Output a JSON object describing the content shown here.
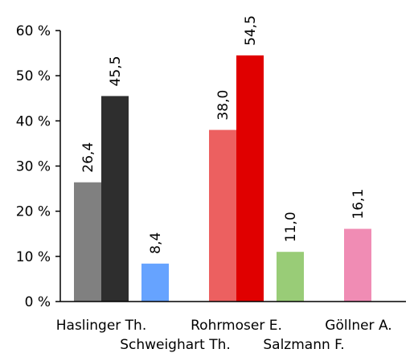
{
  "chart_data": {
    "type": "bar",
    "ylim": [
      0,
      60
    ],
    "y_ticks": [
      {
        "value": 0,
        "label": "0 %"
      },
      {
        "value": 10,
        "label": "10 %"
      },
      {
        "value": 20,
        "label": "20 %"
      },
      {
        "value": 30,
        "label": "30 %"
      },
      {
        "value": 40,
        "label": "40 %"
      },
      {
        "value": 50,
        "label": "50 %"
      },
      {
        "value": 60,
        "label": "60 %"
      }
    ],
    "grid": false,
    "legend": "none",
    "categories": [
      "Haslinger Th.",
      "Schweighart Th.",
      "Rohrmoser E.",
      "Salzmann F.",
      "Göllner A."
    ],
    "bars": [
      {
        "category": "Haslinger Th.",
        "value": 26.4,
        "label": "26,4",
        "color": "#808080"
      },
      {
        "category": "Haslinger Th.",
        "value": 45.5,
        "label": "45,5",
        "color": "#2e2e2e"
      },
      {
        "category": "Schweighart Th.",
        "value": 8.4,
        "label": "8,4",
        "color": "#66a3ff"
      },
      {
        "category": "Rohrmoser E.",
        "value": 38.0,
        "label": "38,0",
        "color": "#ec6060"
      },
      {
        "category": "Rohrmoser E.",
        "value": 54.5,
        "label": "54,5",
        "color": "#e00000"
      },
      {
        "category": "Salzmann F.",
        "value": 11.0,
        "label": "11,0",
        "color": "#99cc77"
      },
      {
        "category": "Göllner A.",
        "value": 16.1,
        "label": "16,1",
        "color": "#f08cb4"
      }
    ]
  }
}
